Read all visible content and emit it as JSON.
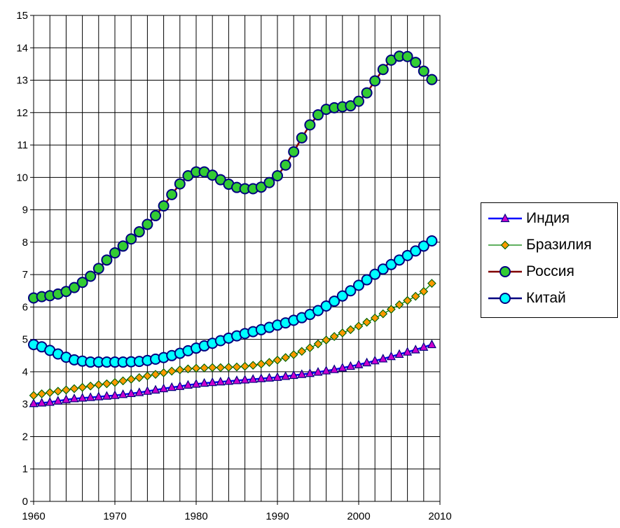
{
  "chart_data": {
    "type": "line",
    "title": "",
    "xlabel": "",
    "ylabel": "",
    "xlim": [
      1960,
      2010
    ],
    "ylim": [
      0,
      15
    ],
    "grid": true,
    "legend_position": "right",
    "x_ticks": [
      "1960",
      "1970",
      "1980",
      "1990",
      "2000",
      "2010"
    ],
    "y_ticks": [
      "0",
      "1",
      "2",
      "3",
      "4",
      "5",
      "6",
      "7",
      "8",
      "9",
      "10",
      "11",
      "12",
      "13",
      "14",
      "15"
    ],
    "x": [
      1960,
      1961,
      1962,
      1963,
      1964,
      1965,
      1966,
      1967,
      1968,
      1969,
      1970,
      1971,
      1972,
      1973,
      1974,
      1975,
      1976,
      1977,
      1978,
      1979,
      1980,
      1981,
      1982,
      1983,
      1984,
      1985,
      1986,
      1987,
      1988,
      1989,
      1990,
      1991,
      1992,
      1993,
      1994,
      1995,
      1996,
      1997,
      1998,
      1999,
      2000,
      2001,
      2002,
      2003,
      2004,
      2005,
      2006,
      2007,
      2008,
      2009
    ],
    "series": [
      {
        "name": "Индия",
        "color": "#0000ff",
        "marker": "triangle",
        "marker_fill": "#cc00cc",
        "values": [
          3.02,
          3.04,
          3.06,
          3.1,
          3.14,
          3.17,
          3.19,
          3.21,
          3.23,
          3.25,
          3.27,
          3.3,
          3.33,
          3.36,
          3.4,
          3.44,
          3.48,
          3.52,
          3.55,
          3.59,
          3.62,
          3.65,
          3.67,
          3.69,
          3.71,
          3.73,
          3.75,
          3.77,
          3.79,
          3.81,
          3.83,
          3.86,
          3.89,
          3.92,
          3.95,
          3.99,
          4.03,
          4.07,
          4.12,
          4.17,
          4.22,
          4.28,
          4.34,
          4.4,
          4.47,
          4.54,
          4.61,
          4.68,
          4.76,
          4.84
        ]
      },
      {
        "name": "Бразилия",
        "color": "#008000",
        "marker": "diamond",
        "marker_fill": "#ff9900",
        "values": [
          3.27,
          3.32,
          3.36,
          3.4,
          3.44,
          3.48,
          3.52,
          3.56,
          3.6,
          3.63,
          3.67,
          3.72,
          3.77,
          3.82,
          3.87,
          3.92,
          3.97,
          4.02,
          4.06,
          4.09,
          4.11,
          4.12,
          4.13,
          4.13,
          4.14,
          4.15,
          4.17,
          4.2,
          4.24,
          4.29,
          4.36,
          4.44,
          4.53,
          4.63,
          4.74,
          4.86,
          4.98,
          5.09,
          5.2,
          5.3,
          5.41,
          5.53,
          5.66,
          5.79,
          5.93,
          6.07,
          6.2,
          6.33,
          6.48,
          6.73
        ]
      },
      {
        "name": "Россия",
        "color": "#800000",
        "marker": "circle",
        "marker_fill": "#33cc33",
        "values": [
          6.28,
          6.32,
          6.35,
          6.4,
          6.48,
          6.6,
          6.76,
          6.95,
          7.19,
          7.45,
          7.67,
          7.88,
          8.1,
          8.32,
          8.55,
          8.82,
          9.12,
          9.47,
          9.8,
          10.05,
          10.17,
          10.17,
          10.07,
          9.93,
          9.79,
          9.69,
          9.65,
          9.65,
          9.7,
          9.84,
          10.05,
          10.38,
          10.79,
          11.22,
          11.62,
          11.93,
          12.1,
          12.15,
          12.18,
          12.21,
          12.35,
          12.61,
          12.98,
          13.33,
          13.62,
          13.74,
          13.73,
          13.55,
          13.28,
          13.02
        ]
      },
      {
        "name": "Китай",
        "color": "#000080",
        "marker": "circle",
        "marker_fill": "#00ffff",
        "values": [
          4.84,
          4.77,
          4.66,
          4.55,
          4.45,
          4.37,
          4.33,
          4.3,
          4.3,
          4.3,
          4.3,
          4.3,
          4.31,
          4.32,
          4.35,
          4.39,
          4.44,
          4.5,
          4.57,
          4.65,
          4.73,
          4.8,
          4.88,
          4.96,
          5.04,
          5.11,
          5.18,
          5.24,
          5.3,
          5.37,
          5.44,
          5.51,
          5.59,
          5.67,
          5.77,
          5.89,
          6.03,
          6.18,
          6.34,
          6.5,
          6.67,
          6.84,
          7.01,
          7.17,
          7.31,
          7.45,
          7.59,
          7.73,
          7.88,
          8.04
        ]
      }
    ]
  }
}
